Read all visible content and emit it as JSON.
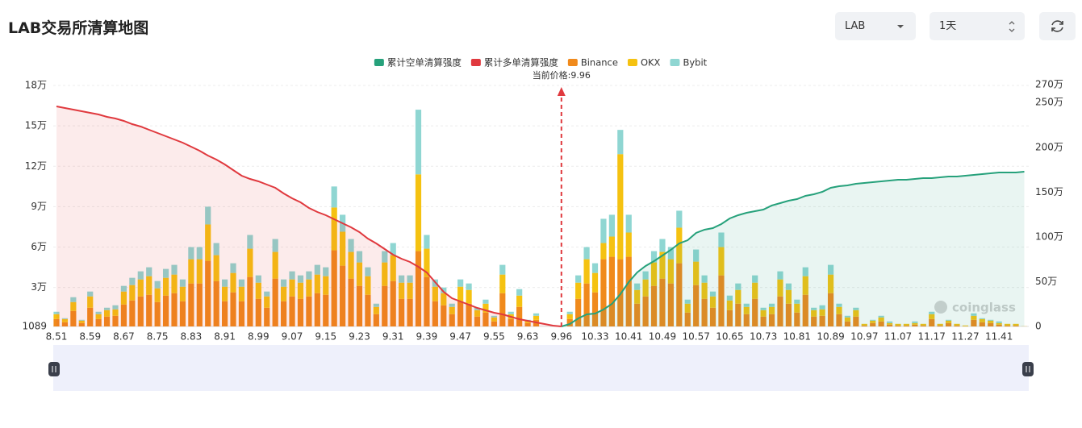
{
  "controls": {
    "symbol": "LAB",
    "interval": "1天"
  },
  "watermark": "coinglass",
  "chart_data": {
    "type": "bar",
    "title": "LAB交易所清算地图",
    "annotation": {
      "text": "当前价格:9.96",
      "category": "9.96"
    },
    "categories": [
      "8.51",
      null,
      null,
      null,
      "8.59",
      null,
      null,
      null,
      "8.67",
      null,
      null,
      null,
      "8.75",
      null,
      null,
      null,
      "8.83",
      null,
      null,
      null,
      "8.91",
      null,
      null,
      null,
      "8.99",
      null,
      null,
      null,
      "9.07",
      null,
      null,
      null,
      "9.15",
      null,
      null,
      null,
      "9.23",
      null,
      null,
      null,
      "9.31",
      null,
      null,
      null,
      "9.39",
      null,
      null,
      null,
      "9.47",
      null,
      null,
      null,
      "9.55",
      null,
      null,
      null,
      "9.63",
      null,
      null,
      null,
      "9.96",
      null,
      null,
      null,
      "10.33",
      null,
      null,
      null,
      "10.41",
      null,
      null,
      null,
      "10.49",
      null,
      null,
      null,
      "10.57",
      null,
      null,
      null,
      "10.65",
      null,
      null,
      null,
      "10.73",
      null,
      null,
      null,
      "10.81",
      null,
      null,
      null,
      "10.89",
      null,
      null,
      null,
      "10.97",
      null,
      null,
      null,
      "11.07",
      null,
      null,
      null,
      "11.17",
      null,
      null,
      null,
      "11.27",
      null,
      null,
      null,
      "11.41",
      null,
      null,
      null
    ],
    "series": [
      {
        "name": "累计空单清算强度",
        "type": "line",
        "axis": "y2",
        "color": "#26a17b",
        "area": "rgba(38,161,123,0.1)",
        "values": [
          null,
          null,
          null,
          null,
          null,
          null,
          null,
          null,
          null,
          null,
          null,
          null,
          null,
          null,
          null,
          null,
          null,
          null,
          null,
          null,
          null,
          null,
          null,
          null,
          null,
          null,
          null,
          null,
          null,
          null,
          null,
          null,
          null,
          null,
          null,
          null,
          null,
          null,
          null,
          null,
          null,
          null,
          null,
          null,
          null,
          null,
          null,
          null,
          null,
          null,
          null,
          null,
          null,
          null,
          null,
          null,
          null,
          null,
          null,
          null,
          0,
          27000,
          90000,
          135000,
          144000,
          189000,
          252000,
          360000,
          495000,
          603000,
          675000,
          729000,
          792000,
          855000,
          927000,
          963000,
          1044000,
          1080000,
          1098000,
          1143000,
          1206000,
          1242000,
          1269000,
          1287000,
          1305000,
          1350000,
          1377000,
          1404000,
          1422000,
          1458000,
          1476000,
          1503000,
          1548000,
          1566000,
          1575000,
          1593000,
          1602000,
          1611000,
          1620000,
          1629000,
          1638000,
          1638000,
          1647000,
          1656000,
          1656000,
          1665000,
          1674000,
          1674000,
          1683000,
          1692000,
          1701000,
          1710000,
          1719000,
          1719000,
          1719000,
          1728000
        ]
      },
      {
        "name": "累计多单清算强度",
        "type": "line",
        "axis": "y2",
        "color": "#e0393e",
        "area": "rgba(224,57,62,0.1)",
        "values": [
          2457000,
          2439000,
          2421000,
          2403000,
          2385000,
          2367000,
          2340000,
          2322000,
          2295000,
          2259000,
          2232000,
          2196000,
          2160000,
          2124000,
          2088000,
          2052000,
          2007000,
          1962000,
          1908000,
          1863000,
          1809000,
          1746000,
          1683000,
          1647000,
          1620000,
          1584000,
          1548000,
          1485000,
          1431000,
          1386000,
          1323000,
          1278000,
          1242000,
          1197000,
          1152000,
          1107000,
          1053000,
          981000,
          927000,
          864000,
          801000,
          756000,
          720000,
          666000,
          603000,
          495000,
          387000,
          315000,
          279000,
          243000,
          207000,
          180000,
          153000,
          135000,
          108000,
          81000,
          63000,
          45000,
          27000,
          9000,
          0,
          null,
          null,
          null,
          null,
          null,
          null,
          null,
          null,
          null,
          null,
          null,
          null,
          null,
          null,
          null,
          null,
          null,
          null,
          null,
          null,
          null,
          null,
          null,
          null,
          null,
          null,
          null,
          null,
          null,
          null,
          null,
          null,
          null,
          null,
          null,
          null,
          null,
          null,
          null,
          null,
          null,
          null,
          null,
          null,
          null,
          null,
          null,
          null,
          null,
          null,
          null,
          null,
          null,
          null,
          null
        ]
      },
      {
        "name": "Binance",
        "type": "bar",
        "color": "#f08a1c",
        "values": [
          6600,
          4200,
          12600,
          3600,
          15000,
          6600,
          8400,
          9000,
          17400,
          20400,
          23400,
          24600,
          19200,
          24000,
          25800,
          19800,
          33000,
          33000,
          49800,
          34800,
          19800,
          26400,
          19800,
          37800,
          21600,
          15000,
          36600,
          19800,
          23400,
          21600,
          23400,
          25800,
          24600,
          57600,
          46200,
          36600,
          31200,
          24600,
          10200,
          31200,
          34800,
          21600,
          21600,
          57000,
          37800,
          19800,
          16800,
          10200,
          19800,
          18000,
          8400,
          11400,
          4800,
          25800,
          6600,
          15600,
          3600,
          6000,
          0,
          0,
          0,
          6600,
          21600,
          33000,
          26400,
          51000,
          52800,
          51000,
          52800,
          18000,
          23400,
          31200,
          36600,
          33000,
          48000,
          11400,
          31800,
          21600,
          15000,
          39000,
          13200,
          18000,
          10200,
          21600,
          8400,
          10200,
          23400,
          18000,
          11400,
          24600,
          8400,
          9000,
          25800,
          10200,
          4800,
          8400,
          1800,
          3600,
          4800,
          2400,
          1800,
          1800,
          2400,
          1800,
          6600,
          1800,
          3600,
          1800,
          1200,
          6000,
          4200,
          3600,
          2400,
          1800,
          1800,
          600
        ]
      },
      {
        "name": "OKX",
        "type": "bar",
        "color": "#f5c211",
        "values": [
          3600,
          2400,
          6600,
          1800,
          8400,
          3600,
          4800,
          4800,
          9600,
          11400,
          12600,
          13800,
          10200,
          13200,
          13800,
          10800,
          18000,
          18000,
          27000,
          19200,
          10800,
          14400,
          10800,
          21000,
          12000,
          8400,
          19800,
          10800,
          12600,
          12000,
          12600,
          13800,
          13800,
          31800,
          25200,
          19800,
          17400,
          13800,
          5400,
          17400,
          19200,
          12000,
          12000,
          57000,
          21000,
          10800,
          9000,
          5400,
          10800,
          10200,
          4800,
          6600,
          3000,
          13800,
          3600,
          8400,
          1800,
          3000,
          0,
          0,
          0,
          3600,
          12000,
          18000,
          14400,
          12000,
          15000,
          78000,
          18000,
          10200,
          12600,
          17400,
          19800,
          18000,
          26400,
          6600,
          17400,
          12000,
          8400,
          21000,
          7200,
          10200,
          5400,
          12000,
          4800,
          5400,
          12600,
          10200,
          6600,
          13800,
          4800,
          4800,
          13800,
          5400,
          3000,
          4800,
          1200,
          1800,
          3000,
          1200,
          1200,
          1200,
          1200,
          1200,
          3600,
          1200,
          1800,
          1200,
          600,
          3000,
          2400,
          1800,
          1200,
          1200,
          1200,
          600
        ]
      },
      {
        "name": "Bybit",
        "type": "bar",
        "color": "#8fd6d2",
        "values": [
          1800,
          600,
          3600,
          600,
          3600,
          1800,
          1800,
          3000,
          4200,
          5400,
          6000,
          6600,
          5400,
          6600,
          7200,
          5400,
          9000,
          9000,
          13200,
          9000,
          5400,
          7200,
          5400,
          10200,
          5400,
          3600,
          9600,
          5400,
          6000,
          5400,
          6000,
          7200,
          6600,
          15600,
          12600,
          9600,
          8400,
          6600,
          2400,
          8400,
          9000,
          5400,
          5400,
          48000,
          10200,
          5400,
          4200,
          2400,
          5400,
          4800,
          1800,
          3000,
          1200,
          7200,
          1800,
          4800,
          600,
          1800,
          0,
          0,
          0,
          1800,
          5400,
          9000,
          7200,
          18000,
          16200,
          18000,
          13200,
          4800,
          6000,
          8400,
          9600,
          9000,
          12600,
          3000,
          9000,
          5400,
          3600,
          10800,
          3600,
          4800,
          2400,
          5400,
          1800,
          2400,
          6000,
          4800,
          3000,
          6600,
          1800,
          3000,
          7200,
          2400,
          1200,
          1800,
          0,
          600,
          1200,
          1200,
          0,
          0,
          1200,
          0,
          1800,
          0,
          600,
          0,
          0,
          1800,
          600,
          600,
          1200,
          0,
          0,
          0
        ]
      }
    ],
    "ylim": [
      1089,
      180000
    ],
    "yticks": [
      1089,
      {
        "value": 30000,
        "label": "3万"
      },
      {
        "value": 60000,
        "label": "6万"
      },
      {
        "value": 90000,
        "label": "9万"
      },
      {
        "value": 120000,
        "label": "12万"
      },
      {
        "value": 150000,
        "label": "15万"
      },
      {
        "value": 180000,
        "label": "18万"
      }
    ],
    "y2lim": [
      0,
      2700000
    ],
    "y2ticks": [
      0,
      {
        "value": 500000,
        "label": "50万"
      },
      {
        "value": 1000000,
        "label": "100万"
      },
      {
        "value": 1500000,
        "label": "150万"
      },
      {
        "value": 2000000,
        "label": "200万"
      },
      {
        "value": 2500000,
        "label": "250万"
      },
      {
        "value": 2700000,
        "label": "270万"
      }
    ],
    "grid": true
  }
}
